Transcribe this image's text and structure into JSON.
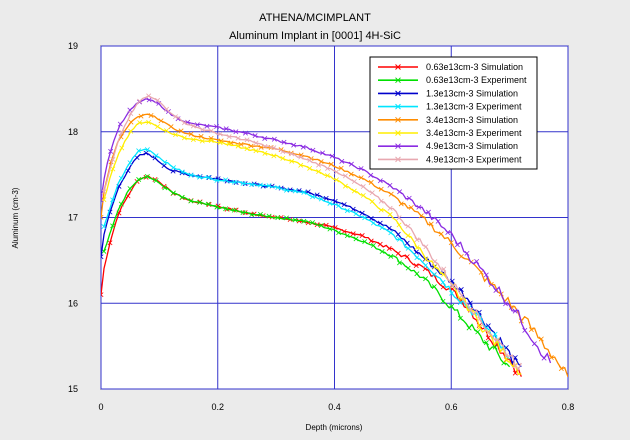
{
  "header": {
    "title": "ATHENA/MCIMPLANT",
    "subtitle": "Aluminum Implant in [0001] 4H-SiC"
  },
  "chart_data": {
    "type": "line",
    "title": "ATHENA/MCIMPLANT",
    "subtitle": "Aluminum Implant in [0001] 4H-SiC",
    "xlabel": "Depth (microns)",
    "ylabel": "Aluminum (cm-3)",
    "xlim": [
      0,
      0.8
    ],
    "ylim": [
      15,
      19
    ],
    "xticks": [
      "0",
      "0.2",
      "0.4",
      "0.6",
      "0.8"
    ],
    "yticks": [
      "15",
      "16",
      "17",
      "18",
      "19"
    ],
    "grid": true,
    "legend_position": "top-right",
    "series": [
      {
        "name": "0.63e13cm-3 Simulation",
        "color": "#ff0000",
        "x": [
          0,
          0.005,
          0.015,
          0.03,
          0.05,
          0.065,
          0.08,
          0.1,
          0.12,
          0.15,
          0.2,
          0.25,
          0.3,
          0.35,
          0.4,
          0.45,
          0.5,
          0.55,
          0.6,
          0.63,
          0.65,
          0.68,
          0.7,
          0.72
        ],
        "y": [
          16.1,
          16.4,
          16.7,
          17.05,
          17.3,
          17.45,
          17.48,
          17.42,
          17.3,
          17.2,
          17.13,
          17.05,
          17.0,
          16.95,
          16.88,
          16.78,
          16.62,
          16.42,
          16.15,
          15.95,
          15.75,
          15.5,
          15.35,
          15.15
        ]
      },
      {
        "name": "0.63e13cm-3 Experiment",
        "color": "#00e000",
        "x": [
          0.005,
          0.015,
          0.03,
          0.05,
          0.065,
          0.08,
          0.1,
          0.12,
          0.15,
          0.2,
          0.25,
          0.3,
          0.35,
          0.4,
          0.45,
          0.5,
          0.55,
          0.58,
          0.6,
          0.63,
          0.65,
          0.68,
          0.7
        ],
        "y": [
          16.6,
          16.8,
          17.1,
          17.35,
          17.45,
          17.48,
          17.4,
          17.3,
          17.2,
          17.12,
          17.05,
          17.0,
          16.96,
          16.85,
          16.72,
          16.55,
          16.3,
          16.1,
          15.95,
          15.75,
          15.6,
          15.4,
          15.25
        ]
      },
      {
        "name": "1.3e13cm-3 Simulation",
        "color": "#0000cc",
        "x": [
          0,
          0.005,
          0.015,
          0.03,
          0.05,
          0.065,
          0.08,
          0.1,
          0.12,
          0.15,
          0.2,
          0.25,
          0.3,
          0.35,
          0.4,
          0.45,
          0.5,
          0.55,
          0.6,
          0.63,
          0.65,
          0.68,
          0.7,
          0.72
        ],
        "y": [
          16.55,
          16.8,
          17.05,
          17.35,
          17.6,
          17.72,
          17.75,
          17.65,
          17.55,
          17.5,
          17.45,
          17.4,
          17.35,
          17.3,
          17.2,
          17.05,
          16.85,
          16.55,
          16.25,
          16.05,
          15.85,
          15.6,
          15.4,
          15.2
        ]
      },
      {
        "name": "1.3e13cm-3 Experiment",
        "color": "#00e5ff",
        "x": [
          0.005,
          0.015,
          0.03,
          0.05,
          0.065,
          0.08,
          0.1,
          0.12,
          0.15,
          0.2,
          0.25,
          0.3,
          0.35,
          0.4,
          0.45,
          0.5,
          0.55,
          0.58,
          0.6,
          0.63,
          0.65,
          0.68,
          0.7
        ],
        "y": [
          16.9,
          17.1,
          17.4,
          17.65,
          17.78,
          17.8,
          17.7,
          17.6,
          17.5,
          17.44,
          17.4,
          17.35,
          17.28,
          17.15,
          17.0,
          16.8,
          16.5,
          16.3,
          16.15,
          15.95,
          15.8,
          15.55,
          15.4
        ]
      },
      {
        "name": "3.4e13cm-3 Simulation",
        "color": "#ff8c00",
        "x": [
          0,
          0.005,
          0.015,
          0.03,
          0.05,
          0.065,
          0.08,
          0.1,
          0.12,
          0.15,
          0.2,
          0.25,
          0.3,
          0.35,
          0.4,
          0.45,
          0.5,
          0.55,
          0.6,
          0.65,
          0.7,
          0.72,
          0.75,
          0.78,
          0.8
        ],
        "y": [
          17.0,
          17.3,
          17.6,
          17.9,
          18.1,
          18.18,
          18.2,
          18.15,
          18.05,
          17.97,
          17.9,
          17.85,
          17.8,
          17.72,
          17.6,
          17.45,
          17.25,
          17.0,
          16.7,
          16.35,
          16.0,
          15.85,
          15.6,
          15.35,
          15.1
        ]
      },
      {
        "name": "3.4e13cm-3 Experiment",
        "color": "#ffee00",
        "x": [
          0.005,
          0.015,
          0.03,
          0.05,
          0.065,
          0.08,
          0.1,
          0.12,
          0.15,
          0.2,
          0.25,
          0.3,
          0.35,
          0.4,
          0.45,
          0.5,
          0.55,
          0.6,
          0.63,
          0.65,
          0.68,
          0.7,
          0.72
        ],
        "y": [
          17.2,
          17.45,
          17.75,
          18.0,
          18.1,
          18.12,
          18.05,
          17.98,
          17.92,
          17.88,
          17.8,
          17.72,
          17.6,
          17.45,
          17.25,
          17.0,
          16.6,
          16.2,
          15.95,
          15.75,
          15.5,
          15.35,
          15.2
        ]
      },
      {
        "name": "4.9e13cm-3 Simulation",
        "color": "#8a2be2",
        "x": [
          0,
          0.005,
          0.015,
          0.03,
          0.05,
          0.065,
          0.08,
          0.1,
          0.12,
          0.15,
          0.2,
          0.25,
          0.3,
          0.35,
          0.4,
          0.45,
          0.5,
          0.55,
          0.6,
          0.65,
          0.7,
          0.72,
          0.75,
          0.77
        ],
        "y": [
          17.2,
          17.45,
          17.75,
          18.05,
          18.25,
          18.35,
          18.38,
          18.32,
          18.2,
          18.1,
          18.05,
          17.98,
          17.9,
          17.82,
          17.7,
          17.55,
          17.35,
          17.1,
          16.8,
          16.4,
          16.0,
          15.8,
          15.5,
          15.3
        ]
      },
      {
        "name": "4.9e13cm-3 Experiment",
        "color": "#e8a8b0",
        "x": [
          0.005,
          0.015,
          0.03,
          0.05,
          0.065,
          0.08,
          0.1,
          0.12,
          0.15,
          0.2,
          0.25,
          0.3,
          0.35,
          0.4,
          0.45,
          0.5,
          0.55,
          0.6,
          0.63,
          0.65,
          0.68,
          0.7,
          0.72
        ],
        "y": [
          17.3,
          17.55,
          17.9,
          18.2,
          18.35,
          18.42,
          18.35,
          18.22,
          18.08,
          17.98,
          17.9,
          17.8,
          17.68,
          17.55,
          17.35,
          17.1,
          16.7,
          16.25,
          16.0,
          15.8,
          15.55,
          15.4,
          15.25
        ]
      }
    ]
  }
}
